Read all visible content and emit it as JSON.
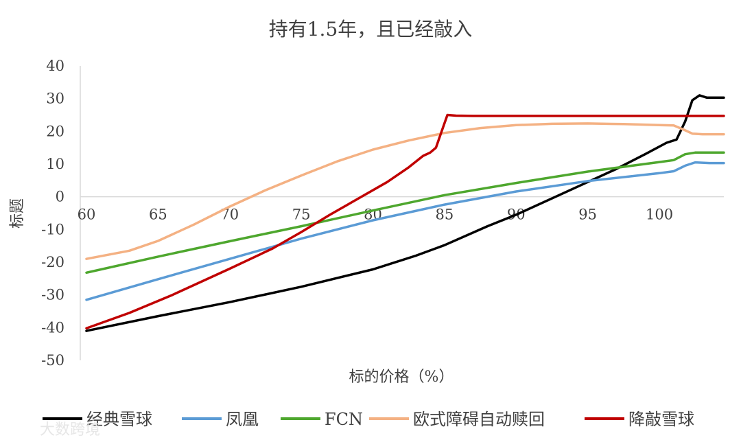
{
  "chart_data": {
    "type": "line",
    "title": "持有1.5年，且已经敲入",
    "xlabel": "标的价格（%）",
    "ylabel": "标题",
    "xlim": [
      60,
      104.5
    ],
    "ylim": [
      -50,
      40
    ],
    "x_ticks": [
      60,
      65,
      70,
      75,
      80,
      85,
      90,
      95,
      100
    ],
    "y_ticks": [
      40,
      30,
      20,
      10,
      0,
      -10,
      -20,
      -30,
      -40,
      -50
    ],
    "grid": false,
    "legend_position": "bottom",
    "series": [
      {
        "name": "经典雪球",
        "color": "#000000",
        "points": [
          [
            60,
            -41
          ],
          [
            65,
            -36.5
          ],
          [
            70,
            -32.2
          ],
          [
            75,
            -27.5
          ],
          [
            80,
            -22.2
          ],
          [
            83,
            -18
          ],
          [
            85,
            -14.8
          ],
          [
            88,
            -9
          ],
          [
            90,
            -5.5
          ],
          [
            93,
            0.5
          ],
          [
            95,
            4.5
          ],
          [
            97,
            8.5
          ],
          [
            99,
            13
          ],
          [
            100.5,
            16.5
          ],
          [
            101.2,
            17.5
          ],
          [
            101.8,
            23
          ],
          [
            102.3,
            29.5
          ],
          [
            102.8,
            31
          ],
          [
            103.3,
            30.3
          ],
          [
            104.5,
            30.3
          ]
        ]
      },
      {
        "name": "凤凰",
        "color": "#5b9bd5",
        "points": [
          [
            60,
            -31.5
          ],
          [
            65,
            -25.2
          ],
          [
            70,
            -19
          ],
          [
            75,
            -12.8
          ],
          [
            80,
            -7.2
          ],
          [
            85,
            -2.4
          ],
          [
            90,
            1.6
          ],
          [
            95,
            4.8
          ],
          [
            100,
            7.2
          ],
          [
            101,
            7.8
          ],
          [
            101.8,
            9.5
          ],
          [
            102.5,
            10.5
          ],
          [
            103.5,
            10.3
          ],
          [
            104.5,
            10.3
          ]
        ]
      },
      {
        "name": "FCN",
        "color": "#4ea72e",
        "points": [
          [
            60,
            -23.2
          ],
          [
            65,
            -18.3
          ],
          [
            70,
            -13.6
          ],
          [
            75,
            -9
          ],
          [
            80,
            -4.2
          ],
          [
            85,
            0.5
          ],
          [
            90,
            4.2
          ],
          [
            95,
            7.7
          ],
          [
            100,
            10.6
          ],
          [
            101,
            11.2
          ],
          [
            101.8,
            13
          ],
          [
            102.5,
            13.5
          ],
          [
            104.5,
            13.5
          ]
        ]
      },
      {
        "name": "欧式障碍自动赎回",
        "color": "#f4b183",
        "points": [
          [
            60,
            -19
          ],
          [
            63,
            -16.5
          ],
          [
            65,
            -13.5
          ],
          [
            67.5,
            -8.5
          ],
          [
            70,
            -3
          ],
          [
            72.5,
            2
          ],
          [
            75,
            6.5
          ],
          [
            77.5,
            10.8
          ],
          [
            80,
            14.4
          ],
          [
            82.5,
            17.2
          ],
          [
            85,
            19.5
          ],
          [
            87.5,
            21
          ],
          [
            90,
            21.9
          ],
          [
            92.5,
            22.3
          ],
          [
            95,
            22.4
          ],
          [
            97.5,
            22.2
          ],
          [
            100,
            21.9
          ],
          [
            101,
            21.8
          ],
          [
            101.7,
            20.5
          ],
          [
            102.3,
            19.3
          ],
          [
            103,
            19.1
          ],
          [
            104.5,
            19.1
          ]
        ]
      },
      {
        "name": "降敲雪球",
        "color": "#c00000",
        "points": [
          [
            60,
            -40.2
          ],
          [
            63,
            -35.5
          ],
          [
            66,
            -30
          ],
          [
            70,
            -22
          ],
          [
            73,
            -15.8
          ],
          [
            75,
            -10.8
          ],
          [
            77,
            -5.5
          ],
          [
            79,
            -0.5
          ],
          [
            81,
            4.5
          ],
          [
            82.5,
            9
          ],
          [
            83.5,
            12.5
          ],
          [
            84,
            13.5
          ],
          [
            84.4,
            15
          ],
          [
            84.8,
            20
          ],
          [
            85.2,
            25
          ],
          [
            85.8,
            24.8
          ],
          [
            87,
            24.7
          ],
          [
            104.5,
            24.7
          ]
        ]
      }
    ]
  },
  "watermark": "大数跨境"
}
